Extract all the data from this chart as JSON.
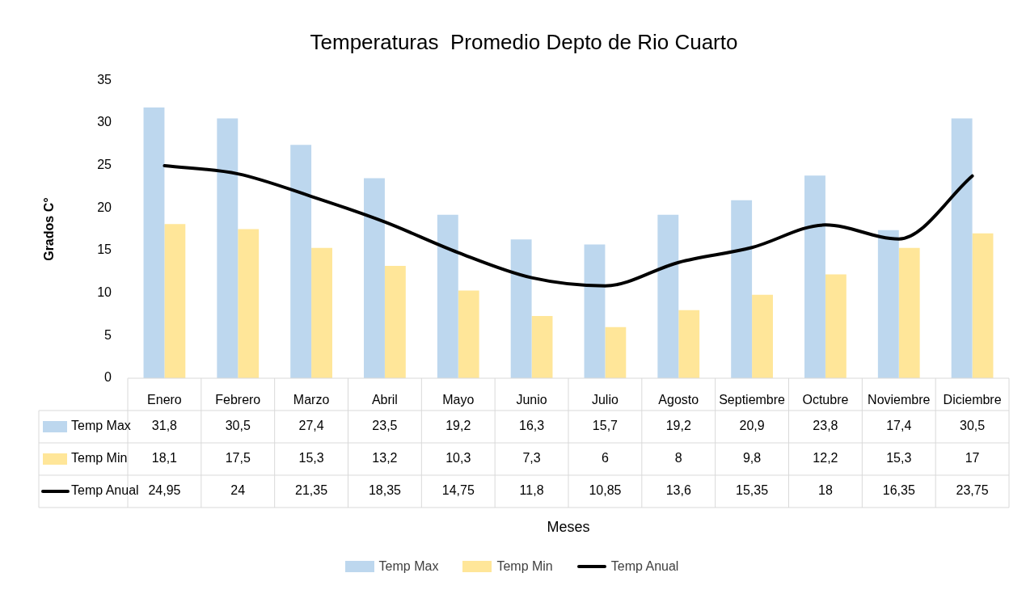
{
  "chart_data": {
    "type": "bar",
    "title": "Temperaturas  Promedio Depto de Rio Cuarto",
    "annotations": [
      "Meses"
    ],
    "ylabel": "Grados C°",
    "categories": [
      "Enero",
      "Febrero",
      "Marzo",
      "Abril",
      "Mayo",
      "Junio",
      "Julio",
      "Agosto",
      "Septiembre",
      "Octubre",
      "Noviembre",
      "Diciembre"
    ],
    "series": [
      {
        "name": "Temp Max",
        "color": "#bdd7ee",
        "values": [
          31.8,
          30.5,
          27.4,
          23.5,
          19.2,
          16.3,
          15.7,
          19.2,
          20.9,
          23.8,
          17.4,
          30.5
        ],
        "value_labels": [
          "31,8",
          "30,5",
          "27,4",
          "23,5",
          "19,2",
          "16,3",
          "15,7",
          "19,2",
          "20,9",
          "23,8",
          "17,4",
          "30,5"
        ]
      },
      {
        "name": "Temp Min",
        "color": "#ffe699",
        "values": [
          18.1,
          17.5,
          15.3,
          13.2,
          10.3,
          7.3,
          6,
          8,
          9.8,
          12.2,
          15.3,
          17
        ],
        "value_labels": [
          "18,1",
          "17,5",
          "15,3",
          "13,2",
          "10,3",
          "7,3",
          "6",
          "8",
          "9,8",
          "12,2",
          "15,3",
          "17"
        ]
      },
      {
        "name": "Temp Anual",
        "type": "line",
        "color": "#000000",
        "marker": "none",
        "line_style": "solid",
        "values": [
          24.95,
          24,
          21.35,
          18.35,
          14.75,
          11.8,
          10.85,
          13.6,
          15.35,
          18,
          16.35,
          23.75
        ],
        "value_labels": [
          "24,95",
          "24",
          "21,35",
          "18,35",
          "14,75",
          "11,8",
          "10,85",
          "13,6",
          "15,35",
          "18",
          "16,35",
          "23,75"
        ]
      }
    ],
    "ylim": [
      0,
      35
    ],
    "yticks": [
      0,
      5,
      10,
      15,
      20,
      25,
      30,
      35
    ],
    "legend": "bottom"
  }
}
